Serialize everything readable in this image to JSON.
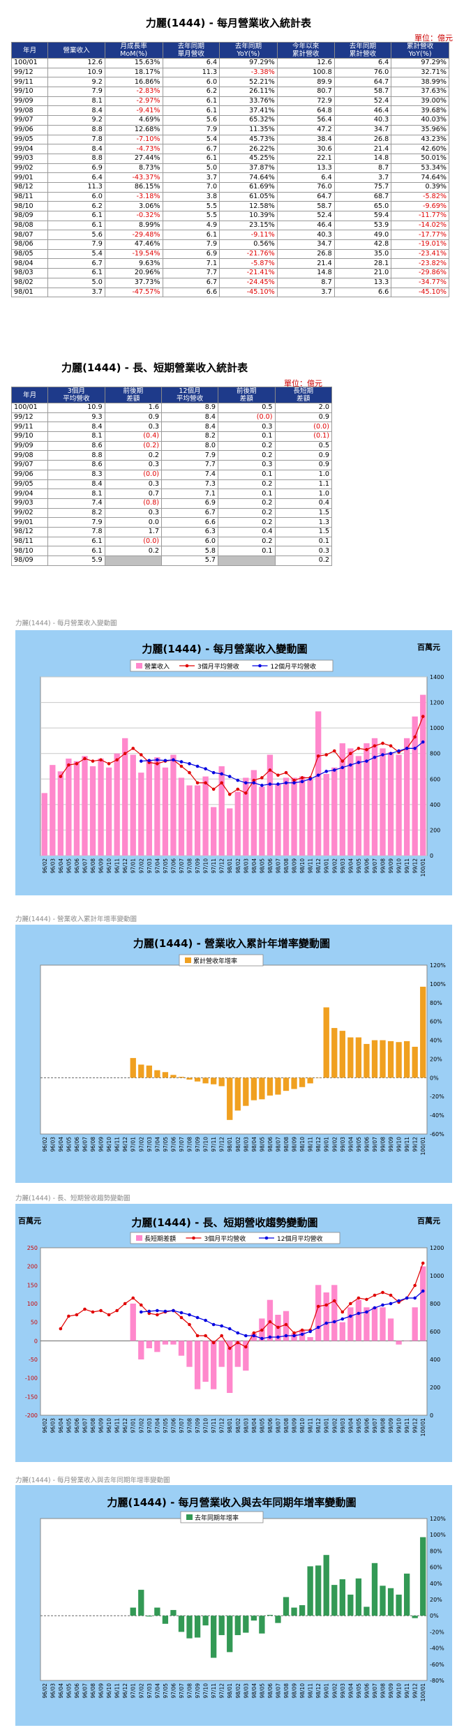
{
  "table1": {
    "title": "力麗(1444) - 每月營業收入統計表",
    "unit": "單位：億元",
    "headers": [
      "年月",
      "營業收入",
      "月成長率 MoM(%)",
      "去年同期 單月營收",
      "去年同期 YoY(%)",
      "今年以來 累計營收",
      "去年同期 累計營收",
      "累計營收 YoY(%)"
    ],
    "rows": [
      [
        "100/01",
        "12.6",
        "15.63%",
        "6.4",
        "97.29%",
        "12.6",
        "6.4",
        "97.29%"
      ],
      [
        "99/12",
        "10.9",
        "18.17%",
        "11.3",
        "-3.38%",
        "100.8",
        "76.0",
        "32.71%"
      ],
      [
        "99/11",
        "9.2",
        "16.86%",
        "6.0",
        "52.21%",
        "89.9",
        "64.7",
        "38.99%"
      ],
      [
        "99/10",
        "7.9",
        "-2.83%",
        "6.2",
        "26.11%",
        "80.7",
        "58.7",
        "37.63%"
      ],
      [
        "99/09",
        "8.1",
        "-2.97%",
        "6.1",
        "33.76%",
        "72.9",
        "52.4",
        "39.00%"
      ],
      [
        "99/08",
        "8.4",
        "-9.41%",
        "6.1",
        "37.41%",
        "64.8",
        "46.4",
        "39.68%"
      ],
      [
        "99/07",
        "9.2",
        "4.69%",
        "5.6",
        "65.32%",
        "56.4",
        "40.3",
        "40.03%"
      ],
      [
        "99/06",
        "8.8",
        "12.68%",
        "7.9",
        "11.35%",
        "47.2",
        "34.7",
        "35.96%"
      ],
      [
        "99/05",
        "7.8",
        "-7.10%",
        "5.4",
        "45.73%",
        "38.4",
        "26.8",
        "43.23%"
      ],
      [
        "99/04",
        "8.4",
        "-4.73%",
        "6.7",
        "26.22%",
        "30.6",
        "21.4",
        "42.60%"
      ],
      [
        "99/03",
        "8.8",
        "27.44%",
        "6.1",
        "45.25%",
        "22.1",
        "14.8",
        "50.01%"
      ],
      [
        "99/02",
        "6.9",
        "8.73%",
        "5.0",
        "37.87%",
        "13.3",
        "8.7",
        "53.34%"
      ],
      [
        "99/01",
        "6.4",
        "-43.37%",
        "3.7",
        "74.64%",
        "6.4",
        "3.7",
        "74.64%"
      ],
      [
        "98/12",
        "11.3",
        "86.15%",
        "7.0",
        "61.69%",
        "76.0",
        "75.7",
        "0.39%"
      ],
      [
        "98/11",
        "6.0",
        "-3.18%",
        "3.8",
        "61.05%",
        "64.7",
        "68.7",
        "-5.82%"
      ],
      [
        "98/10",
        "6.2",
        "3.06%",
        "5.5",
        "12.58%",
        "58.7",
        "65.0",
        "-9.69%"
      ],
      [
        "98/09",
        "6.1",
        "-0.32%",
        "5.5",
        "10.39%",
        "52.4",
        "59.4",
        "-11.77%"
      ],
      [
        "98/08",
        "6.1",
        "8.99%",
        "4.9",
        "23.15%",
        "46.4",
        "53.9",
        "-14.02%"
      ],
      [
        "98/07",
        "5.6",
        "-29.48%",
        "6.1",
        "-9.11%",
        "40.3",
        "49.0",
        "-17.77%"
      ],
      [
        "98/06",
        "7.9",
        "47.46%",
        "7.9",
        "0.56%",
        "34.7",
        "42.8",
        "-19.01%"
      ],
      [
        "98/05",
        "5.4",
        "-19.54%",
        "6.9",
        "-21.76%",
        "26.8",
        "35.0",
        "-23.41%"
      ],
      [
        "98/04",
        "6.7",
        "9.63%",
        "7.1",
        "-5.87%",
        "21.4",
        "28.1",
        "-23.82%"
      ],
      [
        "98/03",
        "6.1",
        "20.96%",
        "7.7",
        "-21.41%",
        "14.8",
        "21.0",
        "-29.86%"
      ],
      [
        "98/02",
        "5.0",
        "37.73%",
        "6.7",
        "-24.45%",
        "8.7",
        "13.3",
        "-34.77%"
      ],
      [
        "98/01",
        "3.7",
        "-47.57%",
        "6.6",
        "-45.10%",
        "3.7",
        "6.6",
        "-45.10%"
      ]
    ]
  },
  "table2": {
    "title": "力麗(1444) - 長、短期營業收入統計表",
    "unit": "單位：億元",
    "headers": [
      "年月",
      "3個月 平均營收",
      "前後期 差額",
      "12個月 平均營收",
      "前後期 差額",
      "長短期 差額"
    ],
    "rows": [
      [
        "100/01",
        "10.9",
        "1.6",
        "8.9",
        "0.5",
        "2.0"
      ],
      [
        "99/12",
        "9.3",
        "0.9",
        "8.4",
        "(0.0)",
        "0.9"
      ],
      [
        "99/11",
        "8.4",
        "0.3",
        "8.4",
        "0.3",
        "(0.0)"
      ],
      [
        "99/10",
        "8.1",
        "(0.4)",
        "8.2",
        "0.1",
        "(0.1)"
      ],
      [
        "99/09",
        "8.6",
        "(0.2)",
        "8.0",
        "0.2",
        "0.5"
      ],
      [
        "99/08",
        "8.8",
        "0.2",
        "7.9",
        "0.2",
        "0.9"
      ],
      [
        "99/07",
        "8.6",
        "0.3",
        "7.7",
        "0.3",
        "0.9"
      ],
      [
        "99/06",
        "8.3",
        "(0.0)",
        "7.4",
        "0.1",
        "1.0"
      ],
      [
        "99/05",
        "8.4",
        "0.3",
        "7.3",
        "0.2",
        "1.1"
      ],
      [
        "99/04",
        "8.1",
        "0.7",
        "7.1",
        "0.1",
        "1.0"
      ],
      [
        "99/03",
        "7.4",
        "(0.8)",
        "6.9",
        "0.2",
        "0.4"
      ],
      [
        "99/02",
        "8.2",
        "0.3",
        "6.7",
        "0.2",
        "1.5"
      ],
      [
        "99/01",
        "7.9",
        "0.0",
        "6.6",
        "0.2",
        "1.3"
      ],
      [
        "98/12",
        "7.8",
        "1.7",
        "6.3",
        "0.4",
        "1.5"
      ],
      [
        "98/11",
        "6.1",
        "(0.0)",
        "6.0",
        "0.2",
        "0.1"
      ],
      [
        "98/10",
        "6.1",
        "0.2",
        "5.8",
        "0.1",
        "0.3"
      ],
      [
        "98/09",
        "5.9",
        "",
        "5.7",
        "",
        "0.2"
      ]
    ]
  },
  "captions": {
    "c1": "力麗(1444) - 每月營業收入變動圖",
    "c2": "力麗(1444) -  營業收入累計年增率變動圖",
    "c3": "力麗(1444) -  長、短期營收趨勢變動圖",
    "c4": "力麗(1444) -  每月營業收入與去年同期年增率變動圖"
  },
  "chart_data": [
    {
      "type": "bar",
      "title": "力麗(1444) - 每月營業收入變動圖",
      "unit_label": "百萬元",
      "legend": [
        "營業收入",
        "3個月平均營收",
        "12個月平均營收"
      ],
      "legend_position": "top",
      "grid": true,
      "ylim": [
        0,
        1400
      ],
      "yticks": [
        0,
        200,
        400,
        600,
        800,
        1000,
        1200,
        1400
      ],
      "colors": {
        "bar": "#ff88cc",
        "line3": "#e00000",
        "line12": "#0000e0"
      },
      "categories": [
        "96/02",
        "96/03",
        "96/04",
        "96/05",
        "96/06",
        "96/07",
        "96/08",
        "96/09",
        "96/10",
        "96/11",
        "96/12",
        "97/01",
        "97/02",
        "97/03",
        "97/04",
        "97/05",
        "97/06",
        "97/07",
        "97/08",
        "97/09",
        "97/10",
        "97/11",
        "97/12",
        "98/01",
        "98/02",
        "98/03",
        "98/04",
        "98/05",
        "98/06",
        "98/07",
        "98/08",
        "98/09",
        "98/10",
        "98/11",
        "98/12",
        "99/01",
        "99/02",
        "99/03",
        "99/04",
        "99/05",
        "99/06",
        "99/07",
        "99/08",
        "99/09",
        "99/10",
        "99/11",
        "99/12",
        "100/01"
      ],
      "series": [
        {
          "name": "營業收入",
          "type": "bar",
          "values": [
            490,
            710,
            660,
            760,
            740,
            780,
            700,
            760,
            690,
            800,
            920,
            790,
            650,
            750,
            770,
            690,
            790,
            610,
            550,
            550,
            620,
            380,
            700,
            370,
            500,
            610,
            670,
            540,
            790,
            560,
            610,
            610,
            620,
            600,
            1130,
            640,
            690,
            880,
            840,
            780,
            880,
            920,
            840,
            810,
            790,
            920,
            1090,
            1260
          ]
        },
        {
          "name": "3個月平均營收",
          "type": "line",
          "values": [
            null,
            null,
            620,
            710,
            720,
            760,
            740,
            750,
            720,
            750,
            800,
            840,
            790,
            730,
            720,
            740,
            750,
            700,
            650,
            570,
            570,
            520,
            570,
            480,
            520,
            490,
            590,
            610,
            670,
            630,
            650,
            590,
            610,
            610,
            780,
            790,
            820,
            740,
            800,
            840,
            830,
            860,
            880,
            860,
            810,
            840,
            930,
            1090
          ]
        },
        {
          "name": "12個月平均營收",
          "type": "line",
          "values": [
            null,
            null,
            null,
            null,
            null,
            null,
            null,
            null,
            null,
            null,
            null,
            null,
            740,
            745,
            750,
            745,
            750,
            735,
            720,
            700,
            680,
            650,
            640,
            620,
            590,
            570,
            570,
            550,
            560,
            560,
            570,
            570,
            580,
            600,
            630,
            660,
            670,
            690,
            710,
            730,
            740,
            770,
            790,
            800,
            820,
            840,
            840,
            890
          ]
        }
      ]
    },
    {
      "type": "bar",
      "title": "力麗(1444) -  營業收入累計年增率變動圖",
      "legend": [
        "累計營收年增率"
      ],
      "legend_position": "top",
      "grid": false,
      "ylim": [
        -60,
        120
      ],
      "yticks": [
        -60,
        -40,
        -20,
        0,
        20,
        40,
        60,
        80,
        100,
        120
      ],
      "colors": {
        "bar": "#f0a020"
      },
      "categories": [
        "96/02",
        "96/03",
        "96/04",
        "96/05",
        "96/06",
        "96/07",
        "96/08",
        "96/09",
        "96/10",
        "96/11",
        "96/12",
        "97/01",
        "97/02",
        "97/03",
        "97/04",
        "97/05",
        "97/06",
        "97/07",
        "97/08",
        "97/09",
        "97/10",
        "97/11",
        "97/12",
        "98/01",
        "98/02",
        "98/03",
        "98/04",
        "98/05",
        "98/06",
        "98/07",
        "98/08",
        "98/09",
        "98/10",
        "98/11",
        "98/12",
        "99/01",
        "99/02",
        "99/03",
        "99/04",
        "99/05",
        "99/06",
        "99/07",
        "99/08",
        "99/09",
        "99/10",
        "99/11",
        "99/12",
        "100/01"
      ],
      "series": [
        {
          "name": "累計營收年增率",
          "values": [
            null,
            null,
            null,
            null,
            null,
            null,
            null,
            null,
            null,
            null,
            null,
            21,
            14,
            13,
            8,
            6,
            3,
            1,
            -2,
            -4,
            -6,
            -7,
            -9,
            -45,
            -35,
            -30,
            -24,
            -23,
            -19,
            -18,
            -14,
            -12,
            -10,
            -6,
            0,
            75,
            53,
            50,
            43,
            43,
            36,
            40,
            40,
            39,
            38,
            39,
            33,
            97
          ]
        }
      ]
    },
    {
      "type": "bar",
      "title": "力麗(1444) - 長、短期營收趨勢變動圖",
      "unit_label": "百萬元",
      "legend": [
        "長短期差額",
        "3個月平均營收",
        "12個月平均營收"
      ],
      "legend_position": "top",
      "grid": false,
      "ylim": [
        -200,
        250
      ],
      "yticks": [
        -200,
        -150,
        -100,
        -50,
        0,
        50,
        100,
        150,
        200,
        250
      ],
      "y2lim": [
        0,
        1200
      ],
      "y2ticks": [
        0,
        200,
        400,
        600,
        800,
        1000,
        1200
      ],
      "colors": {
        "bar": "#ff88cc",
        "line3": "#e00000",
        "line12": "#0000e0"
      },
      "categories": [
        "96/02",
        "96/03",
        "96/04",
        "96/05",
        "96/06",
        "96/07",
        "96/08",
        "96/09",
        "96/10",
        "96/11",
        "96/12",
        "97/01",
        "97/02",
        "97/03",
        "97/04",
        "97/05",
        "97/06",
        "97/07",
        "97/08",
        "97/09",
        "97/10",
        "97/11",
        "97/12",
        "98/01",
        "98/02",
        "98/03",
        "98/04",
        "98/05",
        "98/06",
        "98/07",
        "98/08",
        "98/09",
        "98/10",
        "98/11",
        "98/12",
        "99/01",
        "99/02",
        "99/03",
        "99/04",
        "99/05",
        "99/06",
        "99/07",
        "99/08",
        "99/09",
        "99/10",
        "99/11",
        "99/12",
        "100/01"
      ],
      "series": [
        {
          "name": "長短期差額",
          "type": "bar",
          "values": [
            null,
            null,
            null,
            null,
            null,
            null,
            null,
            null,
            null,
            null,
            null,
            100,
            -50,
            -20,
            -30,
            -10,
            -10,
            -40,
            -70,
            -130,
            -110,
            -130,
            -70,
            -140,
            -70,
            -80,
            20,
            60,
            110,
            70,
            80,
            20,
            30,
            10,
            150,
            130,
            150,
            50,
            90,
            110,
            90,
            90,
            90,
            60,
            -10,
            0,
            90,
            200
          ]
        },
        {
          "name": "3個月平均營收",
          "type": "line",
          "values": [
            null,
            null,
            620,
            710,
            720,
            760,
            740,
            750,
            720,
            750,
            800,
            840,
            790,
            730,
            720,
            740,
            750,
            700,
            650,
            570,
            570,
            520,
            570,
            480,
            520,
            490,
            590,
            610,
            670,
            630,
            650,
            590,
            610,
            610,
            780,
            790,
            820,
            740,
            800,
            840,
            830,
            860,
            880,
            860,
            810,
            840,
            930,
            1090
          ]
        },
        {
          "name": "12個月平均營收",
          "type": "line",
          "values": [
            null,
            null,
            null,
            null,
            null,
            null,
            null,
            null,
            null,
            null,
            null,
            null,
            740,
            745,
            750,
            745,
            750,
            735,
            720,
            700,
            680,
            650,
            640,
            620,
            590,
            570,
            570,
            550,
            560,
            560,
            570,
            570,
            580,
            600,
            630,
            660,
            670,
            690,
            710,
            730,
            740,
            770,
            790,
            800,
            820,
            840,
            840,
            890
          ]
        }
      ]
    },
    {
      "type": "bar",
      "title": "力麗(1444) - 每月營業收入與去年同期年增率變動圖",
      "legend": [
        "去年同期年增率"
      ],
      "legend_position": "top",
      "grid": false,
      "ylim": [
        -80,
        120
      ],
      "yticks": [
        -80,
        -60,
        -40,
        -20,
        0,
        20,
        40,
        60,
        80,
        100,
        120
      ],
      "colors": {
        "bar": "#339955"
      },
      "categories": [
        "96/02",
        "96/03",
        "96/04",
        "96/05",
        "96/06",
        "96/07",
        "96/08",
        "96/09",
        "96/10",
        "96/11",
        "96/12",
        "97/01",
        "97/02",
        "97/03",
        "97/04",
        "97/05",
        "97/06",
        "97/07",
        "97/08",
        "97/09",
        "97/10",
        "97/11",
        "97/12",
        "98/01",
        "98/02",
        "98/03",
        "98/04",
        "98/05",
        "98/06",
        "98/07",
        "98/08",
        "98/09",
        "98/10",
        "98/11",
        "98/12",
        "99/01",
        "99/02",
        "99/03",
        "99/04",
        "99/05",
        "99/06",
        "99/07",
        "99/08",
        "99/09",
        "99/10",
        "99/11",
        "99/12",
        "100/01"
      ],
      "series": [
        {
          "name": "去年同期年增率",
          "values": [
            null,
            null,
            null,
            null,
            null,
            null,
            null,
            null,
            null,
            null,
            null,
            10,
            32,
            -1,
            10,
            -10,
            7,
            -20,
            -28,
            -27,
            -12,
            -52,
            -24,
            -45,
            -24,
            -21,
            -6,
            -22,
            1,
            -9,
            23,
            10,
            13,
            61,
            62,
            75,
            38,
            45,
            26,
            46,
            11,
            65,
            37,
            34,
            26,
            52,
            -3,
            97
          ]
        }
      ]
    }
  ]
}
